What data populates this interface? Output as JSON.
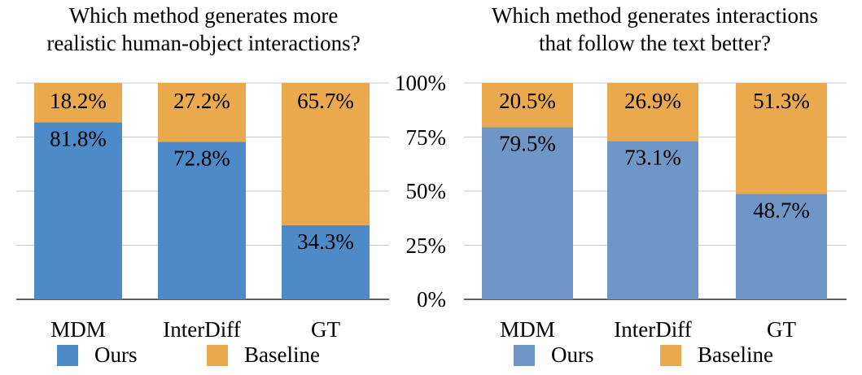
{
  "chart_data": [
    {
      "type": "bar",
      "stacked": true,
      "title_lines": [
        "Which method generates more",
        "realistic human-object interactions?"
      ],
      "categories": [
        "MDM",
        "InterDiff",
        "GT"
      ],
      "series": [
        {
          "name": "Ours",
          "values": [
            81.8,
            72.8,
            34.3
          ],
          "labels": [
            "81.8%",
            "72.8%",
            "34.3%"
          ],
          "color": "#4e8ac8"
        },
        {
          "name": "Baseline",
          "values": [
            18.2,
            27.2,
            65.7
          ],
          "labels": [
            "18.2%",
            "27.2%",
            "65.7%"
          ],
          "color": "#eba94e"
        }
      ],
      "ylim": [
        0,
        100
      ],
      "grid": true,
      "legend": "bottom"
    },
    {
      "type": "bar",
      "stacked": true,
      "title_lines": [
        "Which method generates interactions",
        "that follow the text better?"
      ],
      "categories": [
        "MDM",
        "InterDiff",
        "GT"
      ],
      "series": [
        {
          "name": "Ours",
          "values": [
            79.5,
            73.1,
            48.7
          ],
          "labels": [
            "79.5%",
            "73.1%",
            "48.7%"
          ],
          "color": "#6f96c6"
        },
        {
          "name": "Baseline",
          "values": [
            20.5,
            26.9,
            51.3
          ],
          "labels": [
            "20.5%",
            "26.9%",
            "51.3%"
          ],
          "color": "#eba94e"
        }
      ],
      "ylim": [
        0,
        100
      ],
      "grid": true,
      "legend": "bottom"
    }
  ],
  "y_ticks": [
    "100%",
    "75%",
    "50%",
    "25%",
    "0%"
  ],
  "legend_labels": [
    "Ours",
    "Baseline"
  ]
}
